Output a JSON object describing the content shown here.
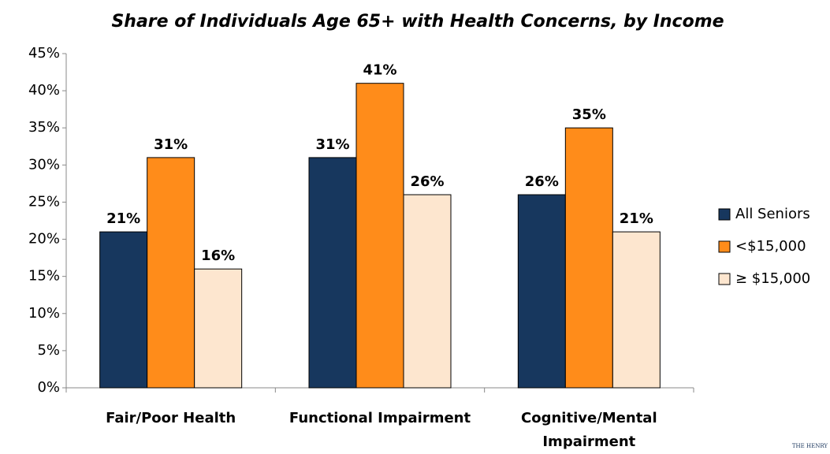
{
  "chart_data": {
    "type": "bar",
    "title": "Share of Individuals  Age 65+ with Health Concerns, by Income",
    "categories": [
      "Fair/Poor Health",
      "Functional Impairment",
      "Cognitive/Mental Impairment"
    ],
    "series": [
      {
        "name": "All Seniors",
        "color": "#17375e",
        "values": [
          21,
          31,
          26
        ],
        "value_labels": [
          "21%",
          "31%",
          "26%"
        ]
      },
      {
        "name": "<$15,000",
        "color": "#ff8c1a",
        "values": [
          31,
          41,
          35
        ],
        "value_labels": [
          "31%",
          "41%",
          "35%"
        ]
      },
      {
        "name": "≥ $15,000",
        "color": "#fde6cf",
        "values": [
          16,
          26,
          21
        ],
        "value_labels": [
          "16%",
          "26%",
          "21%"
        ]
      }
    ],
    "ylim": [
      0,
      45
    ],
    "yticks": [
      {
        "value": 0,
        "label": "0%"
      },
      {
        "value": 5,
        "label": "5%"
      },
      {
        "value": 10,
        "label": "10%"
      },
      {
        "value": 15,
        "label": "15%"
      },
      {
        "value": 20,
        "label": "20%"
      },
      {
        "value": 25,
        "label": "25%"
      },
      {
        "value": 30,
        "label": "30%"
      },
      {
        "value": 35,
        "label": "35%"
      },
      {
        "value": 40,
        "label": "40%"
      },
      {
        "value": 45,
        "label": "45%"
      }
    ],
    "legend": "right",
    "logo_text": "THE HENRY"
  }
}
